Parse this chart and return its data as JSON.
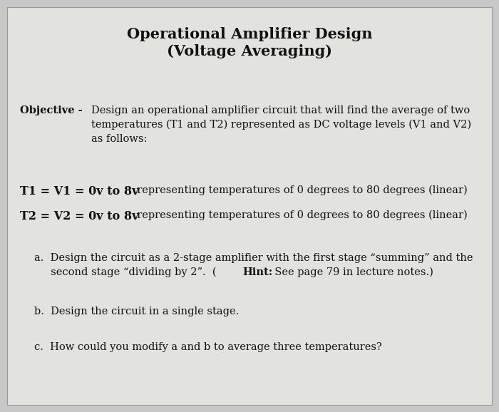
{
  "title_line1": "Operational Amplifier Design",
  "title_line2": "(Voltage Averaging)",
  "bg_color": "#c8c8c8",
  "paper_color": "#e2e2de",
  "text_color": "#111111",
  "objective_bold": "Objective - ",
  "objective_text1": "Design an operational amplifier circuit that will find the average of two",
  "objective_text2": "temperatures (T1 and T2) represented as DC voltage levels (V1 and V2)",
  "objective_text3": "as follows:",
  "t1_bold": "T1 = V1 = 0v to 8v",
  "t1_normal": "  representing temperatures of 0 degrees to 80 degrees (linear)",
  "t2_bold": "T2 = V2 = 0v to 8v",
  "t2_normal": "  representing temperatures of 0 degrees to 80 degrees (linear)",
  "a_line1": "a.  Design the circuit as a 2-stage amplifier with the first stage “summing” and the",
  "a_line2_pre": "     second stage “dividing by 2”.  (",
  "a_line2_bold": "Hint:",
  "a_line2_post": "  See page 79 in lecture notes.)",
  "b_text": "b.  Design the circuit in a single stage.",
  "c_text": "c.  How could you modify a and b to average three temperatures?"
}
